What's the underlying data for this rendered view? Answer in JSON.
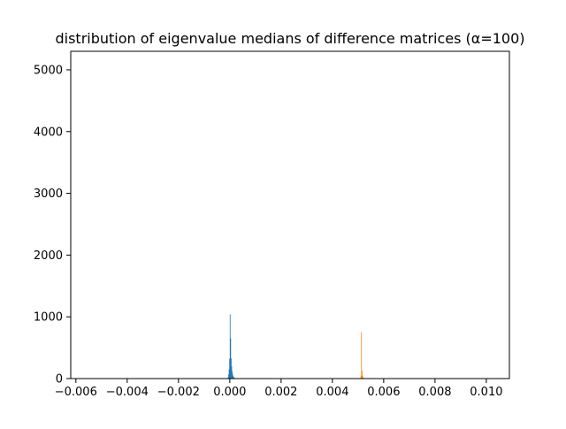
{
  "chart_data": {
    "type": "bar",
    "title": "distribution of eigenvalue medians of difference matrices (α=100)",
    "xlabel": "",
    "ylabel": "",
    "xlim": [
      -0.0062,
      0.0109
    ],
    "ylim": [
      0,
      5300
    ],
    "x_ticks": [
      {
        "value": -0.006,
        "label": "−0.006"
      },
      {
        "value": -0.004,
        "label": "−0.004"
      },
      {
        "value": -0.002,
        "label": "−0.002"
      },
      {
        "value": 0.0,
        "label": "0.000"
      },
      {
        "value": 0.002,
        "label": "0.002"
      },
      {
        "value": 0.004,
        "label": "0.004"
      },
      {
        "value": 0.006,
        "label": "0.006"
      },
      {
        "value": 0.008,
        "label": "0.008"
      },
      {
        "value": 0.01,
        "label": "0.010"
      }
    ],
    "y_ticks": [
      {
        "value": 0,
        "label": "0"
      },
      {
        "value": 1000,
        "label": "1000"
      },
      {
        "value": 2000,
        "label": "2000"
      },
      {
        "value": 3000,
        "label": "3000"
      },
      {
        "value": 4000,
        "label": "4000"
      },
      {
        "value": 5000,
        "label": "5000"
      }
    ],
    "grid": false,
    "series": [
      {
        "color": "#1f77b4",
        "bin_width": 1.65e-05,
        "bins": [
          {
            "x": -0.0001,
            "count": 8
          },
          {
            "x": -8e-05,
            "count": 25
          },
          {
            "x": -6e-05,
            "count": 70
          },
          {
            "x": -4e-05,
            "count": 150
          },
          {
            "x": -2e-05,
            "count": 320
          },
          {
            "x": 0.0,
            "count": 1040
          },
          {
            "x": 2e-05,
            "count": 650
          },
          {
            "x": 4e-05,
            "count": 330
          },
          {
            "x": 6e-05,
            "count": 200
          },
          {
            "x": 8e-05,
            "count": 120
          },
          {
            "x": 0.0001,
            "count": 70
          },
          {
            "x": 0.00012,
            "count": 40
          },
          {
            "x": 0.00014,
            "count": 25
          },
          {
            "x": 0.00016,
            "count": 15
          },
          {
            "x": 0.00018,
            "count": 10
          },
          {
            "x": 0.0002,
            "count": 6
          },
          {
            "x": 0.00022,
            "count": 4
          }
        ]
      },
      {
        "color": "#ff7f0e",
        "bin_width": 1.65e-05,
        "bins": [
          {
            "x": 0.0051,
            "count": 40
          },
          {
            "x": 0.00512,
            "count": 750
          },
          {
            "x": 0.00514,
            "count": 130
          },
          {
            "x": 0.00516,
            "count": 50
          },
          {
            "x": 0.00518,
            "count": 20
          },
          {
            "x": 0.0052,
            "count": 8
          }
        ]
      }
    ]
  }
}
